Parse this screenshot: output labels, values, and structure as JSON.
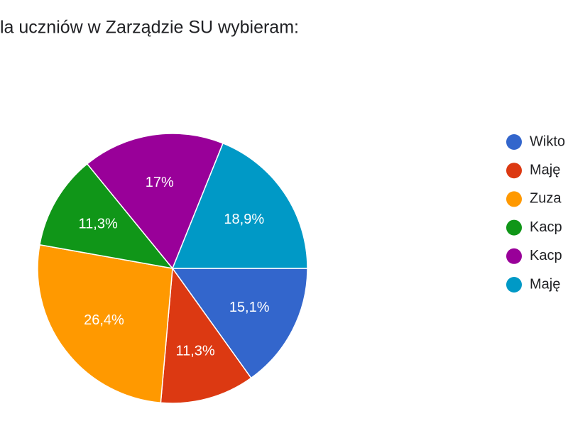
{
  "chart_data": {
    "type": "pie",
    "title": "la uczniów w Zarządzie SU wybieram:",
    "categories": [
      "Wikto",
      "Maję",
      "Zuza",
      "Kacp",
      "Kacp",
      "Maję"
    ],
    "values": [
      15.1,
      11.3,
      26.4,
      11.3,
      17,
      18.9
    ],
    "value_labels": [
      "15,1%",
      "11,3%",
      "26,4%",
      "11,3%",
      "17%",
      "18,9%"
    ],
    "colors": [
      "#3366cc",
      "#dc3912",
      "#ff9900",
      "#109618",
      "#990099",
      "#0099c6"
    ],
    "legend": "right"
  }
}
